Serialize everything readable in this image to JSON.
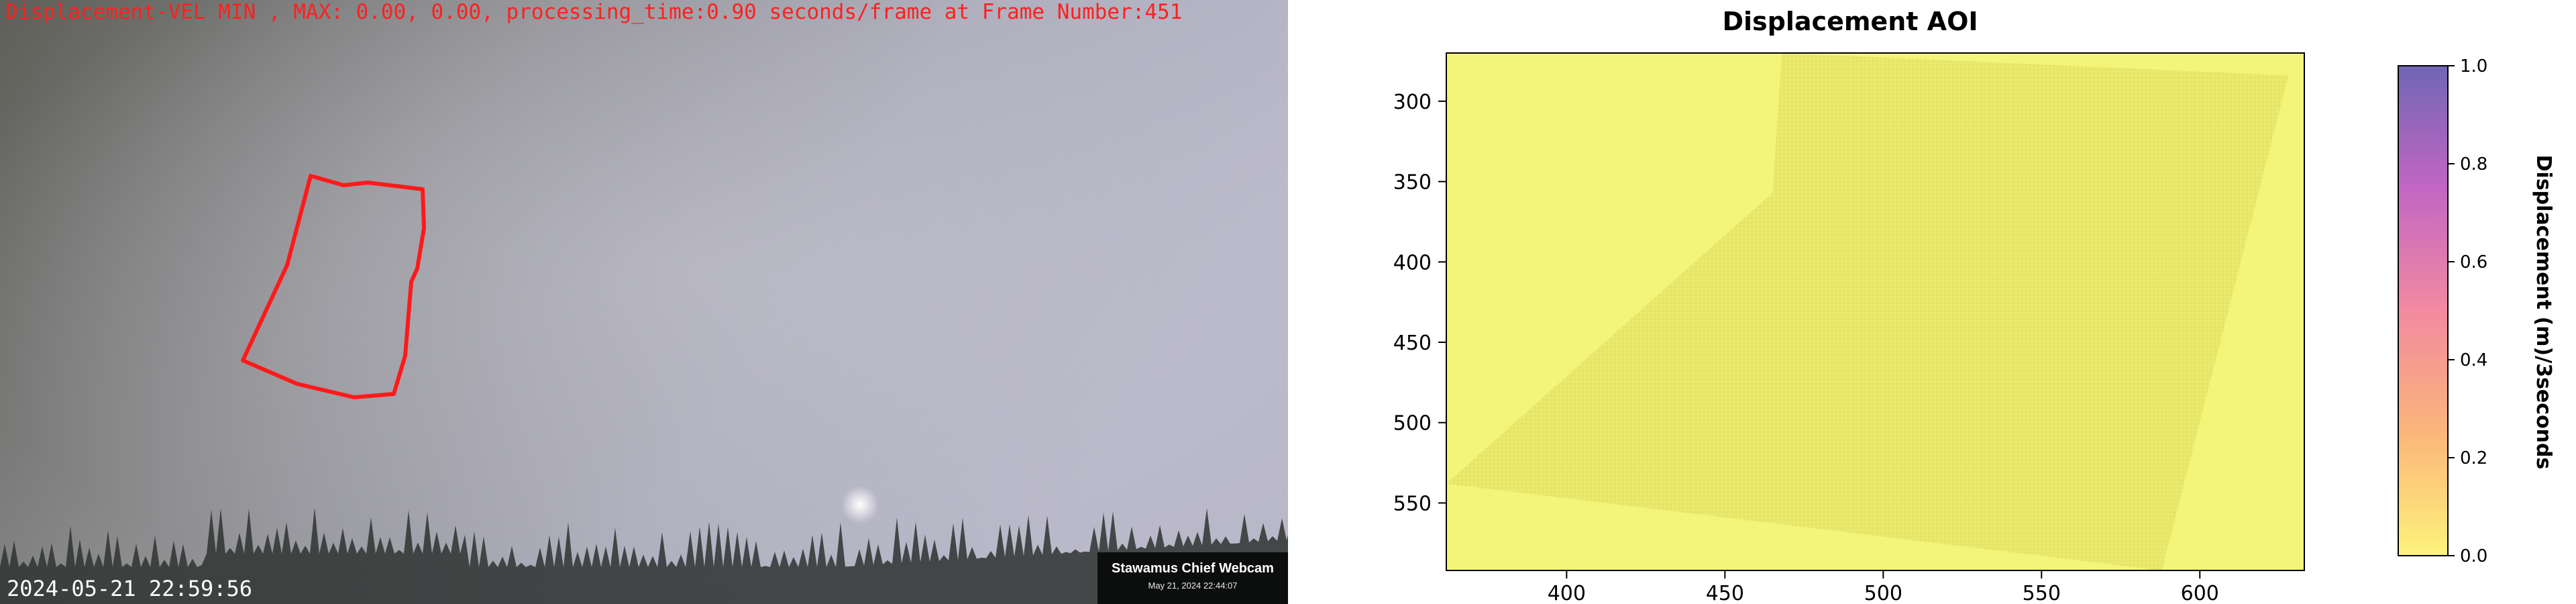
{
  "webcam": {
    "overlay_text": "Displacement-VEL MIN , MAX: 0.00, 0.00, processing_time:0.90 seconds/frame at Frame Number:451",
    "timestamp": "2024-05-21 22:59:56",
    "badge_title": "Stawamus Chief Webcam",
    "badge_date": "May 21, 2024 22:44:07",
    "aoi_outline_color": "#ff1a1a"
  },
  "chart_data": {
    "type": "heatmap",
    "title": "Displacement AOI",
    "xlabel": "",
    "ylabel": "",
    "xlim": [
      362,
      633
    ],
    "ylim": [
      592,
      270
    ],
    "x_ticks": [
      "400",
      "450",
      "500",
      "550",
      "600"
    ],
    "x_tick_values": [
      400,
      450,
      500,
      550,
      600
    ],
    "y_ticks": [
      "300",
      "350",
      "400",
      "450",
      "500",
      "550"
    ],
    "y_tick_values": [
      300,
      350,
      400,
      450,
      500,
      550
    ],
    "values_range": [
      0.0,
      0.0
    ],
    "colormap": [
      "#fdf27b",
      "#fbb67a",
      "#f28aa0",
      "#c266c4",
      "#6f66b3"
    ],
    "colorbar": {
      "label": "Displacement (m)/3seconds",
      "ticks": [
        "0.0",
        "0.2",
        "0.4",
        "0.6",
        "0.8",
        "1.0"
      ],
      "tick_values": [
        0.0,
        0.2,
        0.4,
        0.6,
        0.8,
        1.0
      ],
      "range": [
        0.0,
        1.0
      ]
    },
    "aoi_polygon": [
      [
        468,
        270
      ],
      [
        628,
        284
      ],
      [
        588,
        592
      ],
      [
        362,
        538
      ],
      [
        465,
        357
      ]
    ],
    "grid": false
  }
}
